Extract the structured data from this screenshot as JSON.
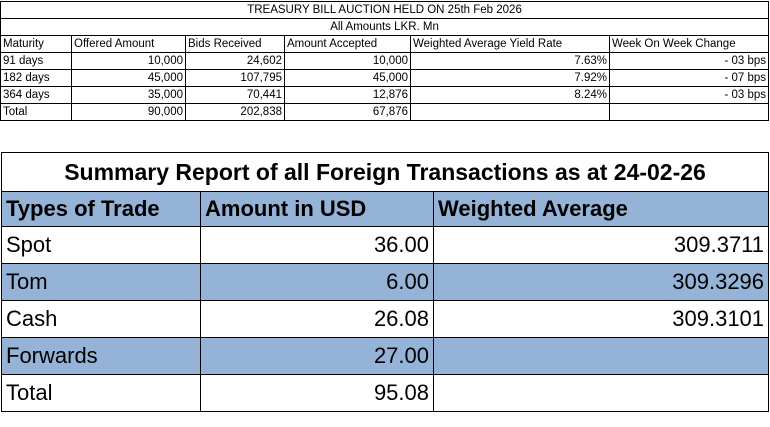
{
  "tbill": {
    "title": "TREASURY BILL AUCTION HELD ON 25th Feb 2026",
    "subtitle": "All Amounts LKR. Mn",
    "columns": [
      "Maturity",
      "Offered Amount",
      "Bids Received",
      "Amount Accepted",
      "Weighted Average Yield Rate",
      "Week On Week Change"
    ],
    "rows": [
      [
        "91 days",
        "10,000",
        "24,602",
        "10,000",
        "7.63%",
        "- 03 bps"
      ],
      [
        "182 days",
        "45,000",
        "107,795",
        "45,000",
        "7.92%",
        "- 07 bps"
      ],
      [
        "364 days",
        "35,000",
        "70,441",
        "12,876",
        "8.24%",
        "- 03 bps"
      ],
      [
        "Total",
        "90,000",
        "202,838",
        "67,876",
        "",
        ""
      ]
    ]
  },
  "fx": {
    "title": "Summary Report of all Foreign Transactions as at 24-02-26",
    "columns": [
      "Types of Trade",
      "Amount in USD",
      "Weighted Average"
    ],
    "rows": [
      [
        "Spot",
        "36.00",
        "309.3711"
      ],
      [
        "Tom",
        "6.00",
        "309.3296"
      ],
      [
        "Cash",
        "26.08",
        "309.3101"
      ],
      [
        "Forwards",
        "27.00",
        ""
      ],
      [
        "Total",
        "95.08",
        ""
      ]
    ]
  }
}
